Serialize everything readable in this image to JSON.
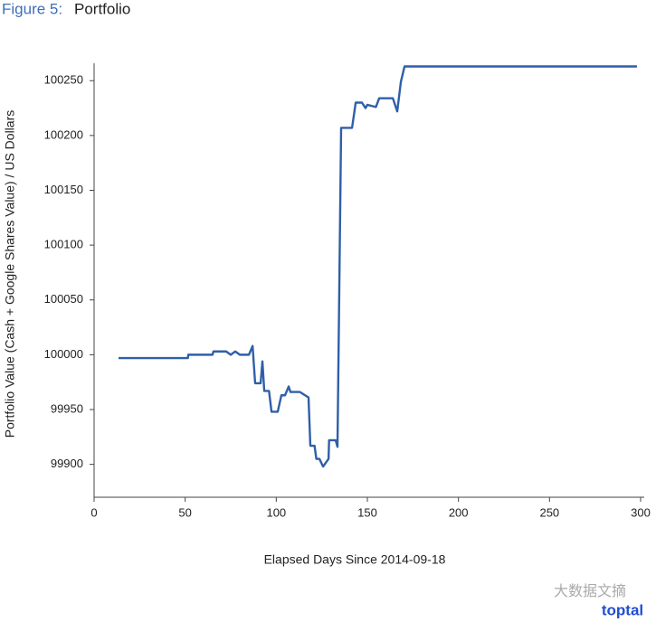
{
  "chart_data": {
    "type": "line",
    "figure_label": "Figure 5:",
    "title": "Portfolio",
    "x_label": "Elapsed Days Since 2014-09-18",
    "y_label": "Portfolio Value (Cash + Google Shares Value) / US Dollars",
    "xlim": [
      0,
      300
    ],
    "xticks": [
      0,
      50,
      100,
      150,
      200,
      250,
      300
    ],
    "ylim": [
      99870,
      100270
    ],
    "yticks": [
      99900,
      99950,
      100000,
      100050,
      100100,
      100150,
      100200,
      100250
    ],
    "grid": false,
    "watermark": "大数据文摘",
    "logo": "toptal",
    "series": [
      {
        "color": "#2f5fa8",
        "x": [
          13.4,
          51.5,
          51.7,
          65,
          65.5,
          72.5,
          75,
          77.5,
          80,
          85,
          87,
          88.4,
          91.4,
          92.4,
          93.4,
          96,
          97.4,
          100.8,
          102.8,
          104.8,
          106.8,
          107.8,
          113,
          117.7,
          118.7,
          121,
          122,
          123.7,
          125.7,
          128.7,
          129,
          132.6,
          133.6,
          135.6,
          141.6,
          143.6,
          147,
          149,
          150,
          154.7,
          156.5,
          164,
          166.4,
          168.4,
          170.4,
          298
        ],
        "values": [
          99997,
          99997,
          100000,
          100000,
          100003,
          100003,
          100000,
          100003,
          100000,
          100000,
          100008,
          99974,
          99974,
          99994,
          99967,
          99967,
          99948,
          99948,
          99963,
          99963,
          99971,
          99966,
          99966,
          99961,
          99917,
          99917,
          99905,
          99905,
          99898,
          99905,
          99922,
          99922,
          99916,
          100207,
          100207,
          100230,
          100230,
          100225,
          100228,
          100226,
          100234,
          100234,
          100222,
          100249,
          100263,
          100263
        ]
      }
    ]
  }
}
